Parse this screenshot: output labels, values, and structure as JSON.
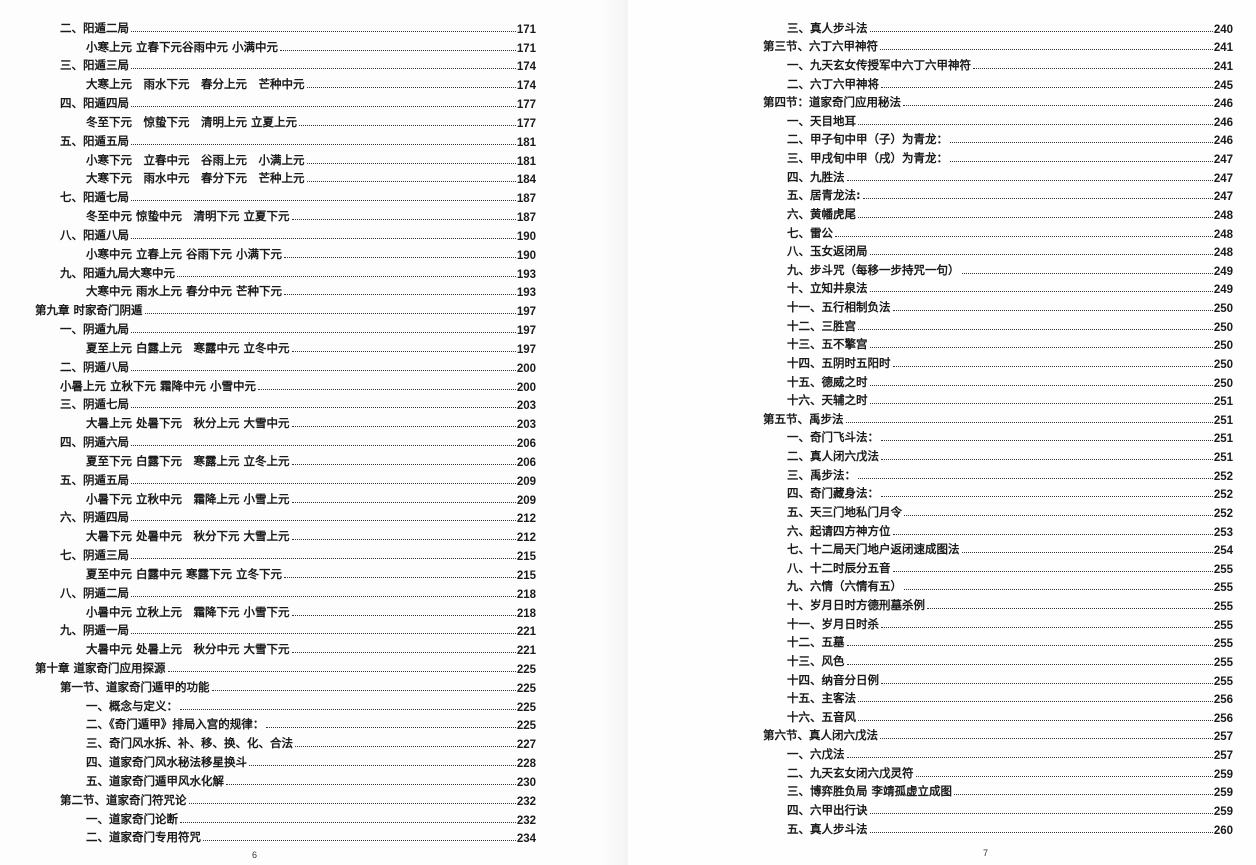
{
  "left_page": {
    "page_number": "6",
    "entries": [
      {
        "level": 1,
        "title": "二、阳遁二局",
        "page": "171"
      },
      {
        "level": 2,
        "title": "小寒上元 立春下元谷雨中元 小满中元",
        "page": "171"
      },
      {
        "level": 1,
        "title": "三、阳遁三局",
        "page": "174"
      },
      {
        "level": 2,
        "title": "大寒上元　雨水下元　春分上元　芒种中元",
        "page": "174"
      },
      {
        "level": 1,
        "title": "四、阳遁四局",
        "page": "177"
      },
      {
        "level": 2,
        "title": "冬至下元　惊蛰下元　清明上元 立夏上元",
        "page": "177"
      },
      {
        "level": 1,
        "title": "五、阳遁五局",
        "page": "181"
      },
      {
        "level": 2,
        "title": "小寒下元　立春中元　谷雨上元　小满上元",
        "page": "181"
      },
      {
        "level": 2,
        "title": "大寒下元　雨水中元　春分下元　芒种上元",
        "page": "184"
      },
      {
        "level": 1,
        "title": "七、阳遁七局",
        "page": "187"
      },
      {
        "level": 2,
        "title": "冬至中元 惊蛰中元　清明下元 立夏下元",
        "page": "187"
      },
      {
        "level": 1,
        "title": "八、阳遁八局",
        "page": "190"
      },
      {
        "level": 2,
        "title": "小寒中元 立春上元 谷雨下元 小满下元",
        "page": "190"
      },
      {
        "level": 1,
        "title": "九、阳遁九局大寒中元",
        "page": "193"
      },
      {
        "level": 2,
        "title": "大寒中元 雨水上元 春分中元 芒种下元",
        "page": "193"
      },
      {
        "level": 0,
        "title": "第九章 时家奇门阴遁",
        "page": "197"
      },
      {
        "level": 1,
        "title": "一、阴遁九局",
        "page": "197"
      },
      {
        "level": 2,
        "title": "夏至上元 白露上元　寒露中元 立冬中元",
        "page": "197"
      },
      {
        "level": 1,
        "title": "二、阴遁八局",
        "page": "200"
      },
      {
        "level": 1,
        "title": "小暑上元 立秋下元 霜降中元 小雪中元",
        "page": "200"
      },
      {
        "level": 1,
        "title": "三、阴遁七局",
        "page": "203"
      },
      {
        "level": 2,
        "title": "大暑上元 处暑下元　秋分上元 大雪中元",
        "page": "203"
      },
      {
        "level": 1,
        "title": "四、阴遁六局",
        "page": "206"
      },
      {
        "level": 2,
        "title": "夏至下元 白露下元　寒露上元 立冬上元",
        "page": "206"
      },
      {
        "level": 1,
        "title": "五、阴遁五局",
        "page": "209"
      },
      {
        "level": 2,
        "title": "小暑下元 立秋中元　霜降上元 小雪上元",
        "page": "209"
      },
      {
        "level": 1,
        "title": "六、阴遁四局",
        "page": "212"
      },
      {
        "level": 2,
        "title": "大暑下元 处暑中元　秋分下元 大雪上元",
        "page": "212"
      },
      {
        "level": 1,
        "title": "七、阴遁三局",
        "page": "215"
      },
      {
        "level": 2,
        "title": "夏至中元 白露中元 寒露下元 立冬下元",
        "page": "215"
      },
      {
        "level": 1,
        "title": "八、阴遁二局",
        "page": "218"
      },
      {
        "level": 2,
        "title": "小暑中元 立秋上元　霜降下元 小雪下元",
        "page": "218"
      },
      {
        "level": 1,
        "title": "九、阴遁一局",
        "page": "221"
      },
      {
        "level": 2,
        "title": "大暑中元 处暑上元　秋分中元 大雪下元",
        "page": "221"
      },
      {
        "level": 0,
        "title": "第十章 道家奇门应用探源",
        "page": "225"
      },
      {
        "level": 1,
        "title": "第一节、道家奇门遁甲的功能",
        "page": "225"
      },
      {
        "level": 2,
        "title": "一、概念与定义：",
        "page": "225"
      },
      {
        "level": 2,
        "title": "二、《奇门遁甲》排局入宫的规律：",
        "page": "225"
      },
      {
        "level": 2,
        "title": "三、奇门风水拆、补、移、换、化、合法",
        "page": "227"
      },
      {
        "level": 2,
        "title": "四、道家奇门风水秘法移星换斗",
        "page": "228"
      },
      {
        "level": 2,
        "title": "五、道家奇门遁甲风水化解",
        "page": "230"
      },
      {
        "level": 1,
        "title": "第二节、道家奇门符咒论",
        "page": "232"
      },
      {
        "level": 2,
        "title": "一、道家奇门论断",
        "page": "232"
      },
      {
        "level": 2,
        "title": "二、道家奇门专用符咒",
        "page": "234"
      }
    ]
  },
  "right_page": {
    "page_number": "7",
    "entries": [
      {
        "level": 1,
        "title": "三、真人步斗法",
        "page": "240"
      },
      {
        "level": 0,
        "title": "第三节、六丁六甲神符",
        "page": "241"
      },
      {
        "level": 1,
        "title": "一、九天玄女传授军中六丁六甲神符",
        "page": "241"
      },
      {
        "level": 1,
        "title": "二、六丁六甲神将",
        "page": "245"
      },
      {
        "level": 0,
        "title": "第四节：道家奇门应用秘法",
        "page": "246"
      },
      {
        "level": 1,
        "title": "一、天目地耳",
        "page": "246"
      },
      {
        "level": 1,
        "title": "二、甲子旬中甲（子）为青龙：",
        "page": "246"
      },
      {
        "level": 1,
        "title": "三、甲戌旬中甲（戌）为青龙：",
        "page": "247"
      },
      {
        "level": 1,
        "title": "四、九胜法",
        "page": "247"
      },
      {
        "level": 1,
        "title": "五、居青龙法:",
        "page": "247"
      },
      {
        "level": 1,
        "title": "六、黄幡虎尾",
        "page": "248"
      },
      {
        "level": 1,
        "title": "七、雷公",
        "page": "248"
      },
      {
        "level": 1,
        "title": "八、玉女返闭局",
        "page": "248"
      },
      {
        "level": 1,
        "title": "九、步斗咒（每移一步持咒一句）",
        "page": "249"
      },
      {
        "level": 1,
        "title": "十、立知井泉法",
        "page": "249"
      },
      {
        "level": 1,
        "title": "十一、五行相制负法",
        "page": "250"
      },
      {
        "level": 1,
        "title": "十二、三胜宫",
        "page": "250"
      },
      {
        "level": 1,
        "title": "十三、五不擎宫",
        "page": "250"
      },
      {
        "level": 1,
        "title": "十四、五阴时五阳时",
        "page": "250"
      },
      {
        "level": 1,
        "title": "十五、德威之时",
        "page": "250"
      },
      {
        "level": 1,
        "title": "十六、天辅之时",
        "page": "251"
      },
      {
        "level": 0,
        "title": "第五节、禹步法",
        "page": "251"
      },
      {
        "level": 1,
        "title": "一、奇门飞斗法：",
        "page": "251"
      },
      {
        "level": 1,
        "title": "二、真人闭六戊法",
        "page": "251"
      },
      {
        "level": 1,
        "title": "三、禹步法：",
        "page": "252"
      },
      {
        "level": 1,
        "title": "四、奇门藏身法：",
        "page": "252"
      },
      {
        "level": 1,
        "title": "五、天三门地私门月令",
        "page": "252"
      },
      {
        "level": 1,
        "title": "六、起请四方神方位",
        "page": "253"
      },
      {
        "level": 1,
        "title": "七、十二局天门地户返闭速成图法",
        "page": "254"
      },
      {
        "level": 1,
        "title": "八、十二时辰分五音",
        "page": "255"
      },
      {
        "level": 1,
        "title": "九、六情（六情有五）",
        "page": "255"
      },
      {
        "level": 1,
        "title": "十、岁月日时方德刑墓杀例",
        "page": "255"
      },
      {
        "level": 1,
        "title": "十一、岁月日时杀",
        "page": "255"
      },
      {
        "level": 1,
        "title": "十二、五墓",
        "page": "255"
      },
      {
        "level": 1,
        "title": "十三、风色",
        "page": "255"
      },
      {
        "level": 1,
        "title": "十四、纳音分日例",
        "page": "255"
      },
      {
        "level": 1,
        "title": "十五、主客法",
        "page": "256"
      },
      {
        "level": 1,
        "title": "十六、五音风",
        "page": "256"
      },
      {
        "level": 0,
        "title": "第六节、真人闭六戊法",
        "page": "257"
      },
      {
        "level": 1,
        "title": "一、六戊法",
        "page": "257"
      },
      {
        "level": 1,
        "title": "二、九天玄女闭六戊灵符",
        "page": "259"
      },
      {
        "level": 1,
        "title": "三、博弈胜负局 李靖孤虚立成图",
        "page": "259"
      },
      {
        "level": 1,
        "title": "四、六甲出行诀",
        "page": "259"
      },
      {
        "level": 1,
        "title": "五、真人步斗法",
        "page": "260"
      }
    ]
  }
}
